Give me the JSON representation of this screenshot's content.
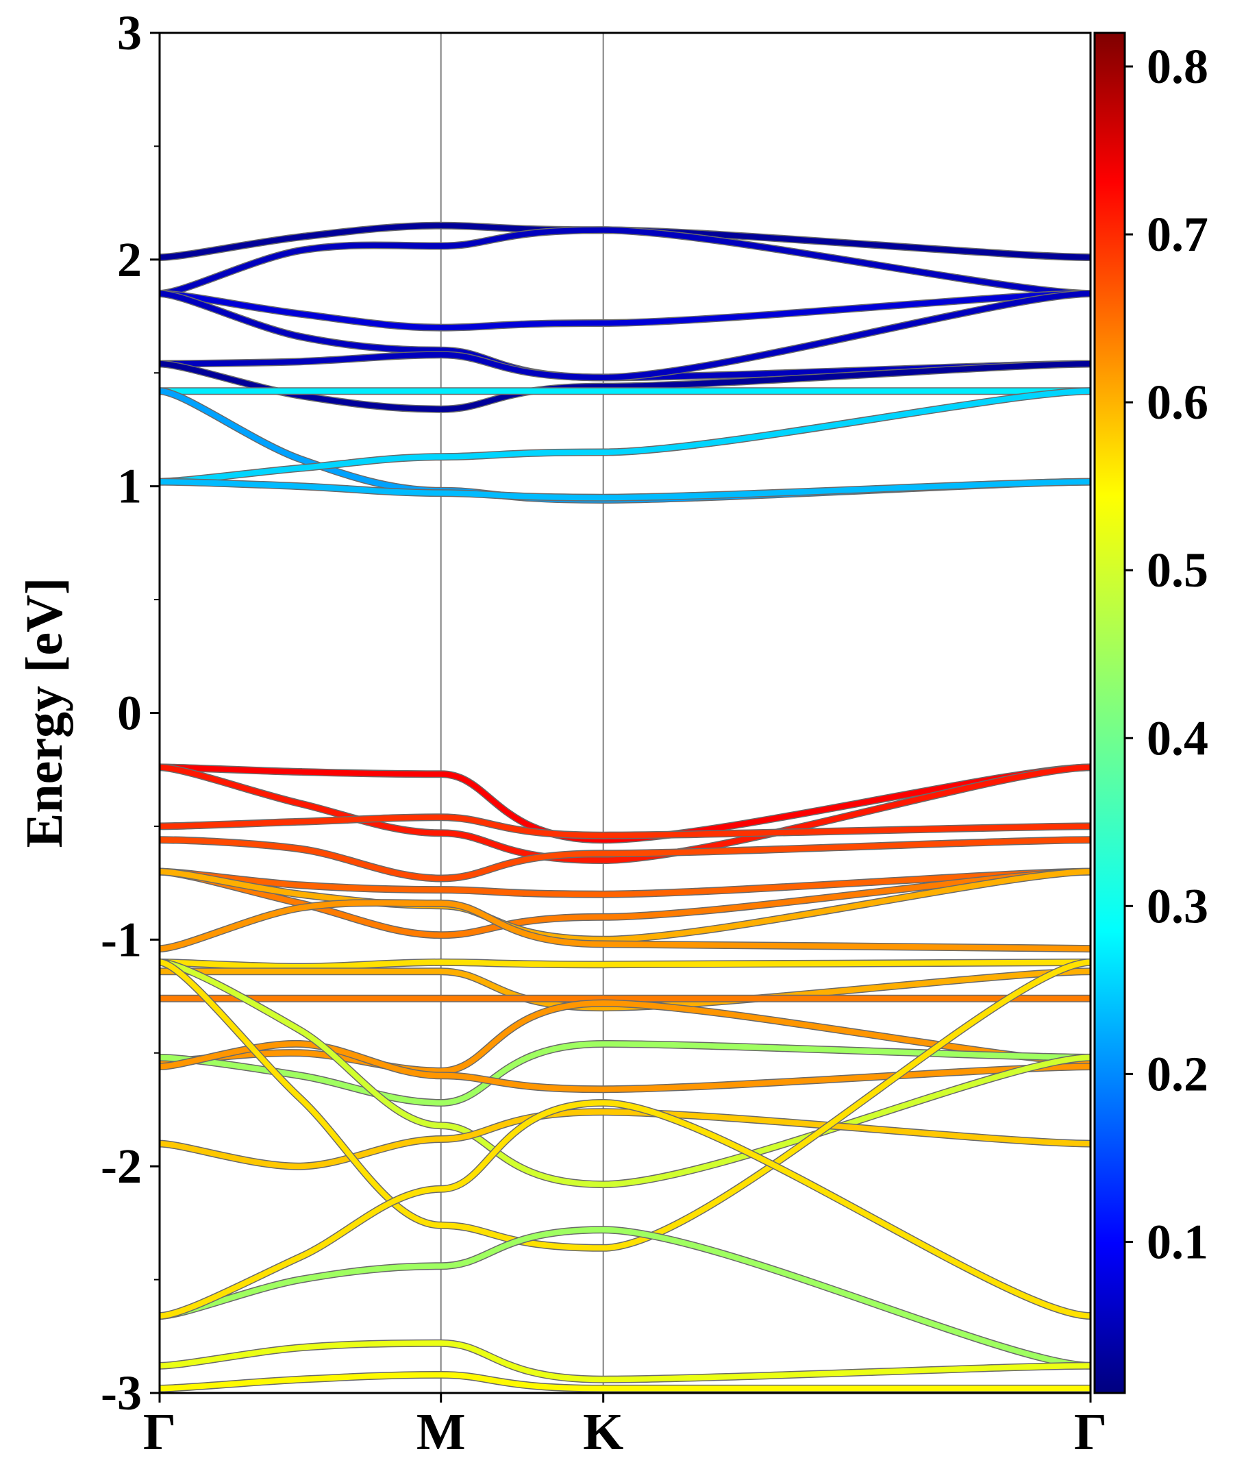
{
  "chart_data": {
    "type": "line",
    "ylabel": "Energy [eV]",
    "xlabel": "",
    "ylim": [
      -3,
      3
    ],
    "x_ticks": [
      "Γ",
      "M",
      "K",
      "Γ"
    ],
    "x_tick_positions": [
      0,
      1,
      1.577,
      3.309
    ],
    "y_ticks": [
      "3",
      "2",
      "1",
      "0",
      "-1",
      "-2",
      "-3"
    ],
    "grid": "vertical lines at high-symmetry points",
    "colorbar": {
      "colormap": "jet",
      "range": [
        0.01,
        0.82
      ],
      "ticks": [
        "0.8",
        "0.7",
        "0.6",
        "0.5",
        "0.4",
        "0.3",
        "0.2",
        "0.1"
      ]
    },
    "series": [
      {
        "energies": [
          2.01,
          2.1,
          2.15,
          2.13,
          2.01
        ],
        "weight": 0.03
      },
      {
        "energies": [
          1.85,
          2.04,
          2.06,
          2.13,
          1.85
        ],
        "weight": 0.06
      },
      {
        "energies": [
          1.85,
          1.76,
          1.7,
          1.72,
          1.85
        ],
        "weight": 0.08
      },
      {
        "energies": [
          1.85,
          1.66,
          1.6,
          1.48,
          1.54
        ],
        "weight": 0.06
      },
      {
        "energies": [
          1.54,
          1.55,
          1.58,
          1.48,
          1.85
        ],
        "weight": 0.06
      },
      {
        "energies": [
          1.54,
          1.4,
          1.34,
          1.44,
          1.54
        ],
        "weight": 0.03
      },
      {
        "energies": [
          1.42,
          1.42,
          1.42,
          1.42,
          1.42
        ],
        "weight": 0.3
      },
      {
        "energies": [
          1.42,
          1.12,
          0.98,
          0.94,
          1.02
        ],
        "weight": 0.24
      },
      {
        "energies": [
          1.02,
          1.08,
          1.13,
          1.15,
          1.42
        ],
        "weight": 0.28
      },
      {
        "energies": [
          1.02,
          1.0,
          0.97,
          0.95,
          1.02
        ],
        "weight": 0.26
      },
      {
        "energies": [
          -0.24,
          -0.26,
          -0.27,
          -0.56,
          -0.24
        ],
        "weight": 0.72
      },
      {
        "energies": [
          -0.24,
          -0.4,
          -0.53,
          -0.65,
          -0.24
        ],
        "weight": 0.7
      },
      {
        "energies": [
          -0.5,
          -0.48,
          -0.46,
          -0.54,
          -0.5
        ],
        "weight": 0.68
      },
      {
        "energies": [
          -0.56,
          -0.6,
          -0.73,
          -0.62,
          -0.56
        ],
        "weight": 0.66
      },
      {
        "energies": [
          -0.7,
          -0.76,
          -0.78,
          -0.8,
          -0.7
        ],
        "weight": 0.64
      },
      {
        "energies": [
          -0.7,
          -0.84,
          -0.98,
          -0.9,
          -0.7
        ],
        "weight": 0.62
      },
      {
        "energies": [
          -0.7,
          -0.8,
          -0.85,
          -1.0,
          -0.7
        ],
        "weight": 0.58
      },
      {
        "energies": [
          -1.04,
          -0.86,
          -0.84,
          -1.02,
          -1.04
        ],
        "weight": 0.6
      },
      {
        "energies": [
          -1.1,
          -1.12,
          -1.1,
          -1.11,
          -1.1
        ],
        "weight": 0.54
      },
      {
        "energies": [
          -1.14,
          -1.14,
          -1.14,
          -1.3,
          -1.14
        ],
        "weight": 0.58
      },
      {
        "energies": [
          -1.26,
          -1.26,
          -1.26,
          -1.26,
          -1.26
        ],
        "weight": 0.62
      },
      {
        "energies": [
          -1.54,
          -1.5,
          -1.58,
          -1.28,
          -1.54
        ],
        "weight": 0.6
      },
      {
        "energies": [
          -1.52,
          -1.6,
          -1.72,
          -1.46,
          -1.52
        ],
        "weight": 0.44
      },
      {
        "energies": [
          -1.56,
          -1.46,
          -1.6,
          -1.66,
          -1.56
        ],
        "weight": 0.6
      },
      {
        "energies": [
          -1.1,
          -1.4,
          -1.82,
          -2.08,
          -1.52
        ],
        "weight": 0.48
      },
      {
        "energies": [
          -1.9,
          -2.0,
          -1.88,
          -1.76,
          -1.9
        ],
        "weight": 0.56
      },
      {
        "energies": [
          -1.1,
          -1.7,
          -2.26,
          -2.36,
          -1.1
        ],
        "weight": 0.54
      },
      {
        "energies": [
          -2.66,
          -2.5,
          -2.44,
          -2.28,
          -2.88
        ],
        "weight": 0.44
      },
      {
        "energies": [
          -2.66,
          -2.4,
          -2.1,
          -1.72,
          -2.66
        ],
        "weight": 0.54
      },
      {
        "energies": [
          -2.88,
          -2.8,
          -2.78,
          -2.94,
          -2.88
        ],
        "weight": 0.5
      },
      {
        "energies": [
          -2.98,
          -2.94,
          -2.92,
          -2.98,
          -2.98
        ],
        "weight": 0.52
      }
    ]
  }
}
